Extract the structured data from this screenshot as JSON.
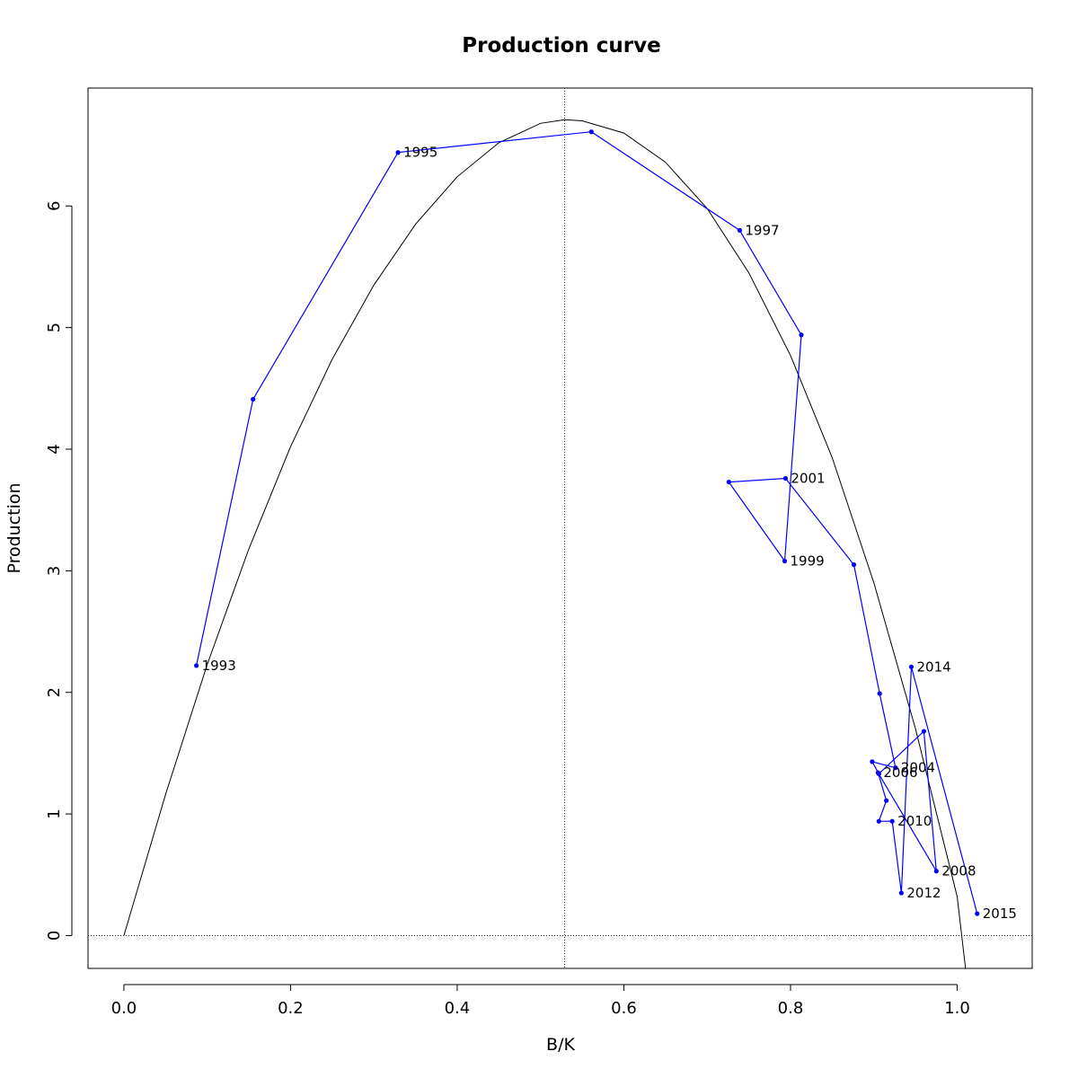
{
  "chart_data": {
    "type": "line",
    "title": "Production curve",
    "xlabel": "B/K",
    "ylabel": "Production",
    "xlim": [
      -0.043,
      1.09
    ],
    "ylim": [
      -0.27,
      6.97
    ],
    "x_ticks": [
      0.0,
      0.2,
      0.4,
      0.6,
      0.8,
      1.0
    ],
    "x_tick_labels": [
      "0.0",
      "0.2",
      "0.4",
      "0.6",
      "0.8",
      "1.0"
    ],
    "y_ticks": [
      0,
      1,
      2,
      3,
      4,
      5,
      6
    ],
    "y_tick_labels": [
      "0",
      "1",
      "2",
      "3",
      "4",
      "5",
      "6"
    ],
    "grid": false,
    "reference_lines": {
      "vertical_dotted_x": 0.529,
      "horizontal_dotted_y": 0
    },
    "production_curve": {
      "color": "#000000",
      "points": [
        [
          0.0,
          0.0
        ],
        [
          0.05,
          1.16
        ],
        [
          0.1,
          2.23
        ],
        [
          0.15,
          3.18
        ],
        [
          0.2,
          4.02
        ],
        [
          0.25,
          4.74
        ],
        [
          0.3,
          5.35
        ],
        [
          0.35,
          5.85
        ],
        [
          0.4,
          6.24
        ],
        [
          0.45,
          6.52
        ],
        [
          0.5,
          6.68
        ],
        [
          0.529,
          6.71
        ],
        [
          0.55,
          6.7
        ],
        [
          0.6,
          6.6
        ],
        [
          0.65,
          6.36
        ],
        [
          0.7,
          5.98
        ],
        [
          0.75,
          5.45
        ],
        [
          0.8,
          4.77
        ],
        [
          0.85,
          3.93
        ],
        [
          0.9,
          2.9
        ],
        [
          0.95,
          1.7
        ],
        [
          1.0,
          0.32
        ],
        [
          1.01,
          -0.27
        ]
      ]
    },
    "series": [
      {
        "color": "#0000ff",
        "x": [
          0.087,
          0.155,
          0.329,
          0.561,
          0.739,
          0.813,
          0.793,
          0.726,
          0.794,
          0.876,
          0.907,
          0.926,
          0.898,
          0.906,
          0.96,
          0.975,
          0.905,
          0.915,
          0.906,
          0.922,
          0.933,
          0.945,
          1.024
        ],
        "y": [
          2.22,
          4.41,
          6.44,
          6.61,
          5.8,
          4.94,
          3.08,
          3.73,
          3.76,
          3.05,
          1.99,
          1.38,
          1.43,
          1.33,
          1.68,
          0.53,
          1.34,
          1.11,
          0.94,
          0.94,
          0.35,
          2.21,
          0.18
        ],
        "labels": [
          "1993",
          "",
          "1995",
          "",
          "1997",
          "",
          "1999",
          "",
          "2001",
          "",
          "",
          "2004",
          "",
          "",
          "",
          "2008",
          "2006",
          "",
          "",
          "2010",
          "2012",
          "2014",
          "2015"
        ]
      }
    ]
  }
}
